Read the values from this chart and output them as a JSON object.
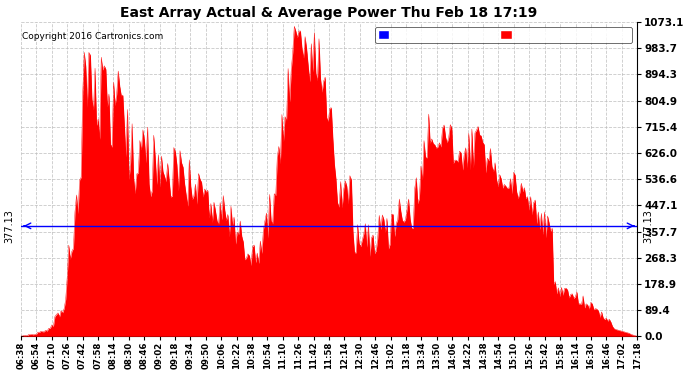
{
  "title": "East Array Actual & Average Power Thu Feb 18 17:19",
  "copyright": "Copyright 2016 Cartronics.com",
  "average_value": 377.13,
  "ymax": 1073.1,
  "yticks": [
    0.0,
    89.4,
    178.9,
    268.3,
    357.7,
    447.1,
    536.6,
    626.0,
    715.4,
    804.9,
    894.3,
    983.7,
    1073.1
  ],
  "ytick_labels": [
    "0.0",
    "89.4",
    "178.9",
    "268.3",
    "357.7",
    "447.1",
    "536.6",
    "626.0",
    "715.4",
    "804.9",
    "894.3",
    "983.7",
    "1073.1"
  ],
  "fill_color": "#FF0000",
  "avg_line_color": "#0000FF",
  "bg_color": "#FFFFFF",
  "grid_color": "#BBBBBB",
  "legend_avg_bg": "#0000FF",
  "legend_east_bg": "#FF0000",
  "xtick_labels": [
    "06:38",
    "06:54",
    "07:10",
    "07:26",
    "07:42",
    "07:58",
    "08:14",
    "08:30",
    "08:46",
    "09:02",
    "09:18",
    "09:34",
    "09:50",
    "10:06",
    "10:22",
    "10:38",
    "10:54",
    "11:10",
    "11:26",
    "11:42",
    "11:58",
    "12:14",
    "12:30",
    "12:46",
    "13:02",
    "13:18",
    "13:34",
    "13:50",
    "14:06",
    "14:22",
    "14:38",
    "14:54",
    "15:10",
    "15:26",
    "15:42",
    "15:58",
    "16:14",
    "16:30",
    "16:46",
    "17:02",
    "17:18"
  ]
}
